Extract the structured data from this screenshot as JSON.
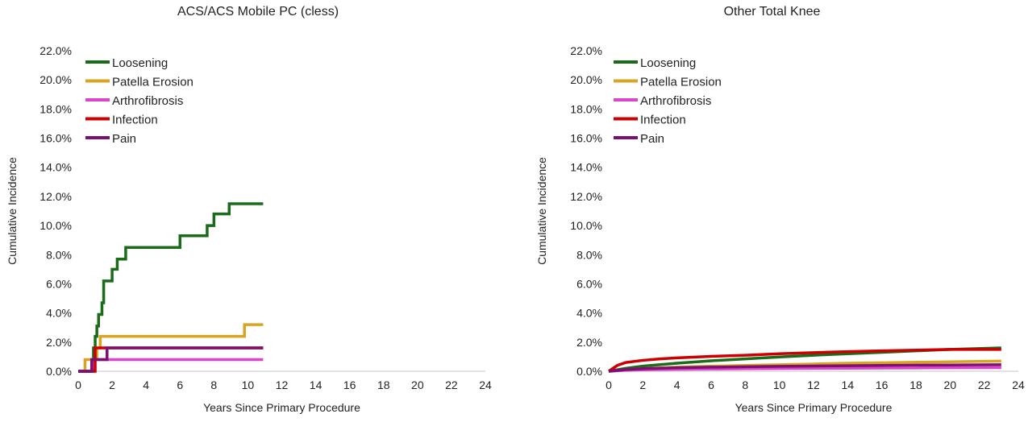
{
  "chart_data": [
    {
      "type": "line",
      "title": "ACS/ACS Mobile PC (cless)",
      "xlabel": "Years Since Primary Procedure",
      "ylabel": "Cumulative Incidence",
      "xlim": [
        0,
        24
      ],
      "ylim": [
        0,
        22
      ],
      "xticks": [
        "0",
        "2",
        "4",
        "6",
        "8",
        "10",
        "12",
        "14",
        "16",
        "18",
        "20",
        "22",
        "24"
      ],
      "yticks": [
        "0.0%",
        "2.0%",
        "4.0%",
        "6.0%",
        "8.0%",
        "10.0%",
        "12.0%",
        "14.0%",
        "16.0%",
        "18.0%",
        "20.0%",
        "22.0%"
      ],
      "grid": false,
      "legend_position": "top-left",
      "step": true,
      "series": [
        {
          "name": "Loosening",
          "color": "#1a6b1a",
          "x": [
            0,
            0.8,
            0.9,
            1.0,
            1.1,
            1.2,
            1.4,
            1.5,
            1.8,
            2.0,
            2.3,
            2.8,
            6.0,
            7.6,
            8.0,
            8.9,
            10.9
          ],
          "y": [
            0,
            0.8,
            1.6,
            2.4,
            3.1,
            3.9,
            4.7,
            6.2,
            6.2,
            7.0,
            7.7,
            8.5,
            9.3,
            10.0,
            10.8,
            11.5,
            11.5
          ]
        },
        {
          "name": "Patella Erosion",
          "color": "#d9a520",
          "x": [
            0,
            0.4,
            1.1,
            1.3,
            9.8,
            10.9
          ],
          "y": [
            0,
            0.8,
            1.6,
            2.4,
            3.2,
            3.2
          ]
        },
        {
          "name": "Arthrofibrosis",
          "color": "#dd44cc",
          "x": [
            0,
            0.9,
            10.9
          ],
          "y": [
            0,
            0.8,
            0.8
          ]
        },
        {
          "name": "Infection",
          "color": "#cc0000",
          "x": [
            0,
            1.0,
            10.9
          ],
          "y": [
            0,
            1.6,
            1.6
          ]
        },
        {
          "name": "Pain",
          "color": "#7b1070",
          "x": [
            0,
            0.8,
            1.7,
            10.9
          ],
          "y": [
            0,
            0.8,
            1.6,
            1.6
          ]
        }
      ]
    },
    {
      "type": "line",
      "title": "Other Total Knee",
      "xlabel": "Years Since Primary Procedure",
      "ylabel": "Cumulative Incidence",
      "xlim": [
        0,
        24
      ],
      "ylim": [
        0,
        22
      ],
      "xticks": [
        "0",
        "2",
        "4",
        "6",
        "8",
        "10",
        "12",
        "14",
        "16",
        "18",
        "20",
        "22",
        "24"
      ],
      "yticks": [
        "0.0%",
        "2.0%",
        "4.0%",
        "6.0%",
        "8.0%",
        "10.0%",
        "12.0%",
        "14.0%",
        "16.0%",
        "18.0%",
        "20.0%",
        "22.0%"
      ],
      "grid": false,
      "legend_position": "top-left",
      "step": false,
      "series": [
        {
          "name": "Loosening",
          "color": "#1a6b1a",
          "x": [
            0,
            1,
            2,
            4,
            6,
            8,
            10,
            12,
            14,
            16,
            18,
            20,
            23
          ],
          "y": [
            0,
            0.2,
            0.35,
            0.55,
            0.72,
            0.85,
            0.98,
            1.1,
            1.2,
            1.3,
            1.4,
            1.5,
            1.6
          ]
        },
        {
          "name": "Patella Erosion",
          "color": "#d9a520",
          "x": [
            0,
            1,
            2,
            4,
            6,
            8,
            10,
            12,
            14,
            16,
            18,
            20,
            23
          ],
          "y": [
            0,
            0.1,
            0.18,
            0.28,
            0.35,
            0.4,
            0.45,
            0.5,
            0.55,
            0.58,
            0.62,
            0.65,
            0.7
          ]
        },
        {
          "name": "Arthrofibrosis",
          "color": "#dd44cc",
          "x": [
            0,
            1,
            2,
            4,
            6,
            8,
            10,
            12,
            14,
            16,
            18,
            20,
            23
          ],
          "y": [
            0,
            0.07,
            0.1,
            0.13,
            0.15,
            0.17,
            0.19,
            0.2,
            0.21,
            0.22,
            0.23,
            0.24,
            0.25
          ]
        },
        {
          "name": "Infection",
          "color": "#cc0000",
          "x": [
            0,
            0.5,
            1,
            2,
            3,
            4,
            6,
            8,
            10,
            12,
            14,
            16,
            18,
            20,
            23
          ],
          "y": [
            0,
            0.4,
            0.6,
            0.75,
            0.85,
            0.92,
            1.02,
            1.1,
            1.2,
            1.28,
            1.35,
            1.4,
            1.45,
            1.5,
            1.5
          ]
        },
        {
          "name": "Pain",
          "color": "#7b1070",
          "x": [
            0,
            1,
            2,
            4,
            6,
            8,
            10,
            12,
            14,
            16,
            18,
            20,
            23
          ],
          "y": [
            0,
            0.12,
            0.18,
            0.24,
            0.28,
            0.31,
            0.34,
            0.36,
            0.38,
            0.4,
            0.42,
            0.43,
            0.45
          ]
        }
      ]
    }
  ]
}
